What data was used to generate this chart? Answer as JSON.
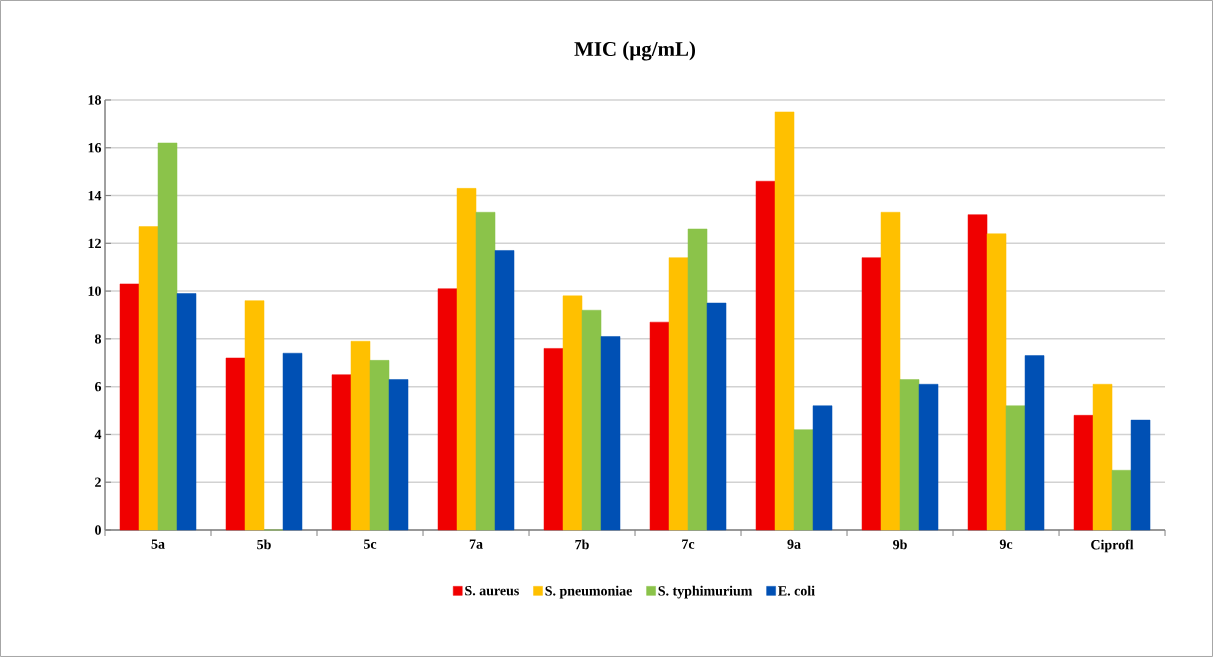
{
  "chart_data": {
    "type": "bar",
    "title": "MIC (µg/mL)",
    "categories": [
      "5a",
      "5b",
      "5c",
      "7a",
      "7b",
      "7c",
      "9a",
      "9b",
      "9c",
      "Ciprofl"
    ],
    "series": [
      {
        "name": "S. aureus",
        "color": "#f00000",
        "values": [
          10.3,
          7.2,
          6.5,
          10.1,
          7.6,
          8.7,
          14.6,
          11.4,
          13.2,
          4.8
        ]
      },
      {
        "name": "S. pneumoniae",
        "color": "#ffc000",
        "values": [
          12.7,
          9.6,
          7.9,
          14.3,
          9.8,
          11.4,
          17.5,
          13.3,
          12.4,
          6.1
        ]
      },
      {
        "name": "S. typhimurium",
        "color": "#8bc34a",
        "values": [
          16.2,
          0,
          7.1,
          13.3,
          9.2,
          12.6,
          4.2,
          6.3,
          5.2,
          2.5
        ]
      },
      {
        "name": "E. coli",
        "color": "#0050b4",
        "values": [
          9.9,
          7.4,
          6.3,
          11.7,
          8.1,
          9.5,
          5.2,
          6.1,
          7.3,
          4.6
        ]
      }
    ],
    "ylim": [
      0,
      18
    ],
    "yticks": [
      0,
      2,
      4,
      6,
      8,
      10,
      12,
      14,
      16,
      18
    ],
    "grid": "y",
    "legend": "bottom"
  }
}
